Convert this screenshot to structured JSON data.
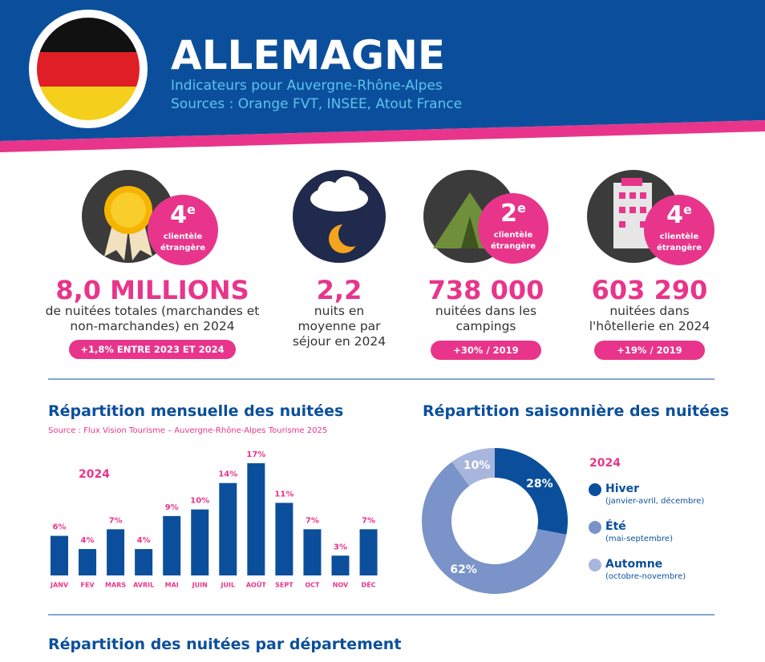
{
  "header": {
    "title": "ALLEMAGNE",
    "subtitle": "Indicateurs pour Auvergne-Rhône-Alpes",
    "sources": "Sources : Orange FVT, INSEE, Atout France"
  },
  "kpis": [
    {
      "rank": "4",
      "rank_suffix": "e",
      "rank_label": "clientèle étrangère",
      "value": "8,0 MILLIONS",
      "description": "de nuitées totales (marchandes et non-marchandes) en 2024",
      "badge": "+1,8% ENTRE 2023 ET 2024"
    },
    {
      "value": "2,2",
      "description": "nuits en moyenne par séjour en 2024"
    },
    {
      "rank": "2",
      "rank_suffix": "e",
      "rank_label": "clientèle étrangère",
      "value": "738 000",
      "description": "nuitées dans les campings",
      "badge": "+30% / 2019"
    },
    {
      "rank": "4",
      "rank_suffix": "e",
      "rank_label": "clientèle étrangère",
      "value": "603 290",
      "description": "nuitées dans l'hôtellerie en 2024",
      "badge": "+19% / 2019"
    }
  ],
  "chart_data": [
    {
      "type": "bar",
      "title": "Répartition mensuelle des nuitées",
      "subtitle": "Source : Flux Vision Tourisme – Auvergne-Rhône-Alpes Tourisme 2025",
      "annotation": "2024",
      "categories": [
        "JANV",
        "FEV",
        "MARS",
        "AVRIL",
        "MAI",
        "JUIN",
        "JUIL",
        "AOÛT",
        "SEPT",
        "OCT",
        "NOV",
        "DÉC"
      ],
      "values": [
        6,
        4,
        7,
        4,
        9,
        10,
        14,
        17,
        11,
        7,
        3,
        7
      ],
      "value_labels": [
        "6%",
        "4%",
        "7%",
        "4%",
        "9%",
        "10%",
        "14%",
        "17%",
        "11%",
        "7%",
        "3%",
        "7%"
      ],
      "color": "#0b4f9c"
    },
    {
      "type": "donut",
      "title": "Répartition saisonnière des nuitées",
      "legend_title": "2024",
      "categories": [
        "Hiver",
        "Été",
        "Automne"
      ],
      "category_notes": [
        "(janvier-avril, décembre)",
        "(mai-septembre)",
        "(octobre-novembre)"
      ],
      "values": [
        28,
        62,
        10
      ],
      "value_labels": [
        "28%",
        "62%",
        "10%"
      ],
      "colors": [
        "#0b4f9c",
        "#7a93c8",
        "#a8b5dc"
      ]
    }
  ],
  "footer_title": "Répartition des nuitées par département"
}
